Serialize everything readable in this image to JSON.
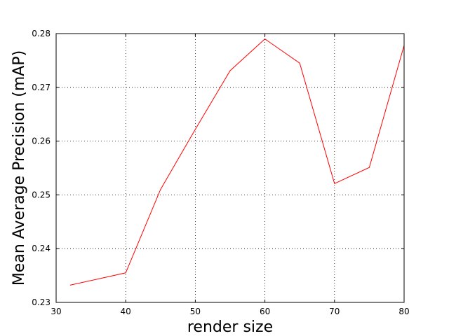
{
  "chart_data": {
    "type": "line",
    "xlabel": "render size",
    "ylabel": "Mean Average Precision (mAP)",
    "xlim": [
      30,
      80
    ],
    "ylim": [
      0.23,
      0.28
    ],
    "xticks": [
      30,
      40,
      50,
      60,
      70,
      80
    ],
    "xtick_labels": [
      "30",
      "40",
      "50",
      "60",
      "70",
      "80"
    ],
    "yticks": [
      0.23,
      0.24,
      0.25,
      0.26,
      0.27,
      0.28
    ],
    "ytick_labels": [
      "0.23",
      "0.24",
      "0.25",
      "0.26",
      "0.27",
      "0.28"
    ],
    "grid": true,
    "series": [
      {
        "color": "#ff0000",
        "x": [
          32,
          40,
          45,
          50,
          55,
          60,
          65,
          70,
          75,
          80
        ],
        "y": [
          0.2332,
          0.2355,
          0.251,
          0.2622,
          0.2731,
          0.279,
          0.2745,
          0.2521,
          0.2551,
          0.2778
        ]
      }
    ]
  }
}
